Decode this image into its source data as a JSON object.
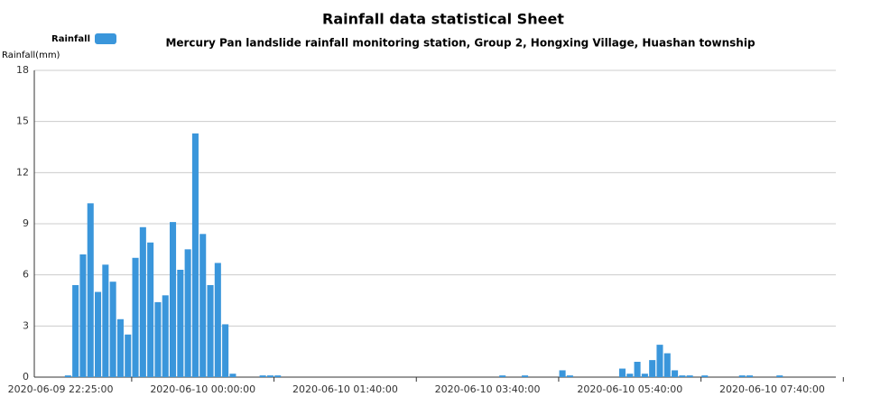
{
  "chart_data": {
    "type": "bar",
    "title": "Rainfall data statistical Sheet",
    "subtitle": "Mercury Pan landslide rainfall monitoring station, Group 2, Hongxing Village, Huashan township",
    "y_axis_label": "Rainfall(mm)",
    "categories": [
      null,
      null,
      null,
      "2020-06-09 22:25:00",
      null,
      null,
      null,
      null,
      null,
      null,
      null,
      null,
      null,
      null,
      null,
      null,
      null,
      null,
      null,
      null,
      null,
      null,
      "2020-06-10 00:00:00",
      null,
      null,
      null,
      null,
      null,
      null,
      null,
      null,
      null,
      null,
      null,
      null,
      null,
      null,
      null,
      null,
      null,
      null,
      "2020-06-10 01:40:00",
      null,
      null,
      null,
      null,
      null,
      null,
      null,
      null,
      null,
      null,
      null,
      null,
      null,
      null,
      null,
      null,
      null,
      null,
      "2020-06-10 03:40:00",
      null,
      null,
      null,
      null,
      null,
      null,
      null,
      null,
      null,
      null,
      null,
      null,
      null,
      null,
      null,
      null,
      null,
      null,
      "2020-06-10 05:40:00",
      null,
      null,
      null,
      null,
      null,
      null,
      null,
      null,
      null,
      null,
      null,
      null,
      null,
      null,
      null,
      null,
      null,
      null,
      "2020-06-10 07:40:00",
      null,
      null,
      null,
      null,
      null,
      null,
      null,
      null
    ],
    "series": [
      {
        "name": "Rainfall",
        "color": "#3a96db",
        "values": [
          0,
          0,
          0,
          0,
          0.1,
          5.4,
          7.2,
          10.2,
          5.0,
          6.6,
          5.6,
          3.4,
          2.5,
          7.0,
          8.8,
          7.9,
          4.4,
          4.8,
          9.1,
          6.3,
          7.5,
          14.3,
          8.4,
          5.4,
          6.7,
          3.1,
          0.2,
          0,
          0,
          0,
          0.1,
          0.1,
          0.1,
          0,
          0,
          0,
          0,
          0,
          0,
          0,
          0,
          0,
          0,
          0,
          0,
          0,
          0,
          0,
          0,
          0,
          0,
          0,
          0,
          0,
          0,
          0,
          0,
          0,
          0,
          0,
          0,
          0,
          0.1,
          0,
          0,
          0.1,
          0,
          0,
          0,
          0,
          0.4,
          0.1,
          0,
          0,
          0,
          0,
          0,
          0,
          0.5,
          0.2,
          0.9,
          0.2,
          1.0,
          1.9,
          1.4,
          0.4,
          0.1,
          0.1,
          0,
          0.1,
          0,
          0,
          0,
          0,
          0.1,
          0.1,
          0,
          0,
          0,
          0.1,
          0,
          0,
          0,
          0,
          0,
          0,
          0
        ]
      }
    ],
    "ylim": [
      0,
      18
    ],
    "yticks": [
      0,
      3,
      6,
      9,
      12,
      15,
      18
    ],
    "grid": true
  }
}
